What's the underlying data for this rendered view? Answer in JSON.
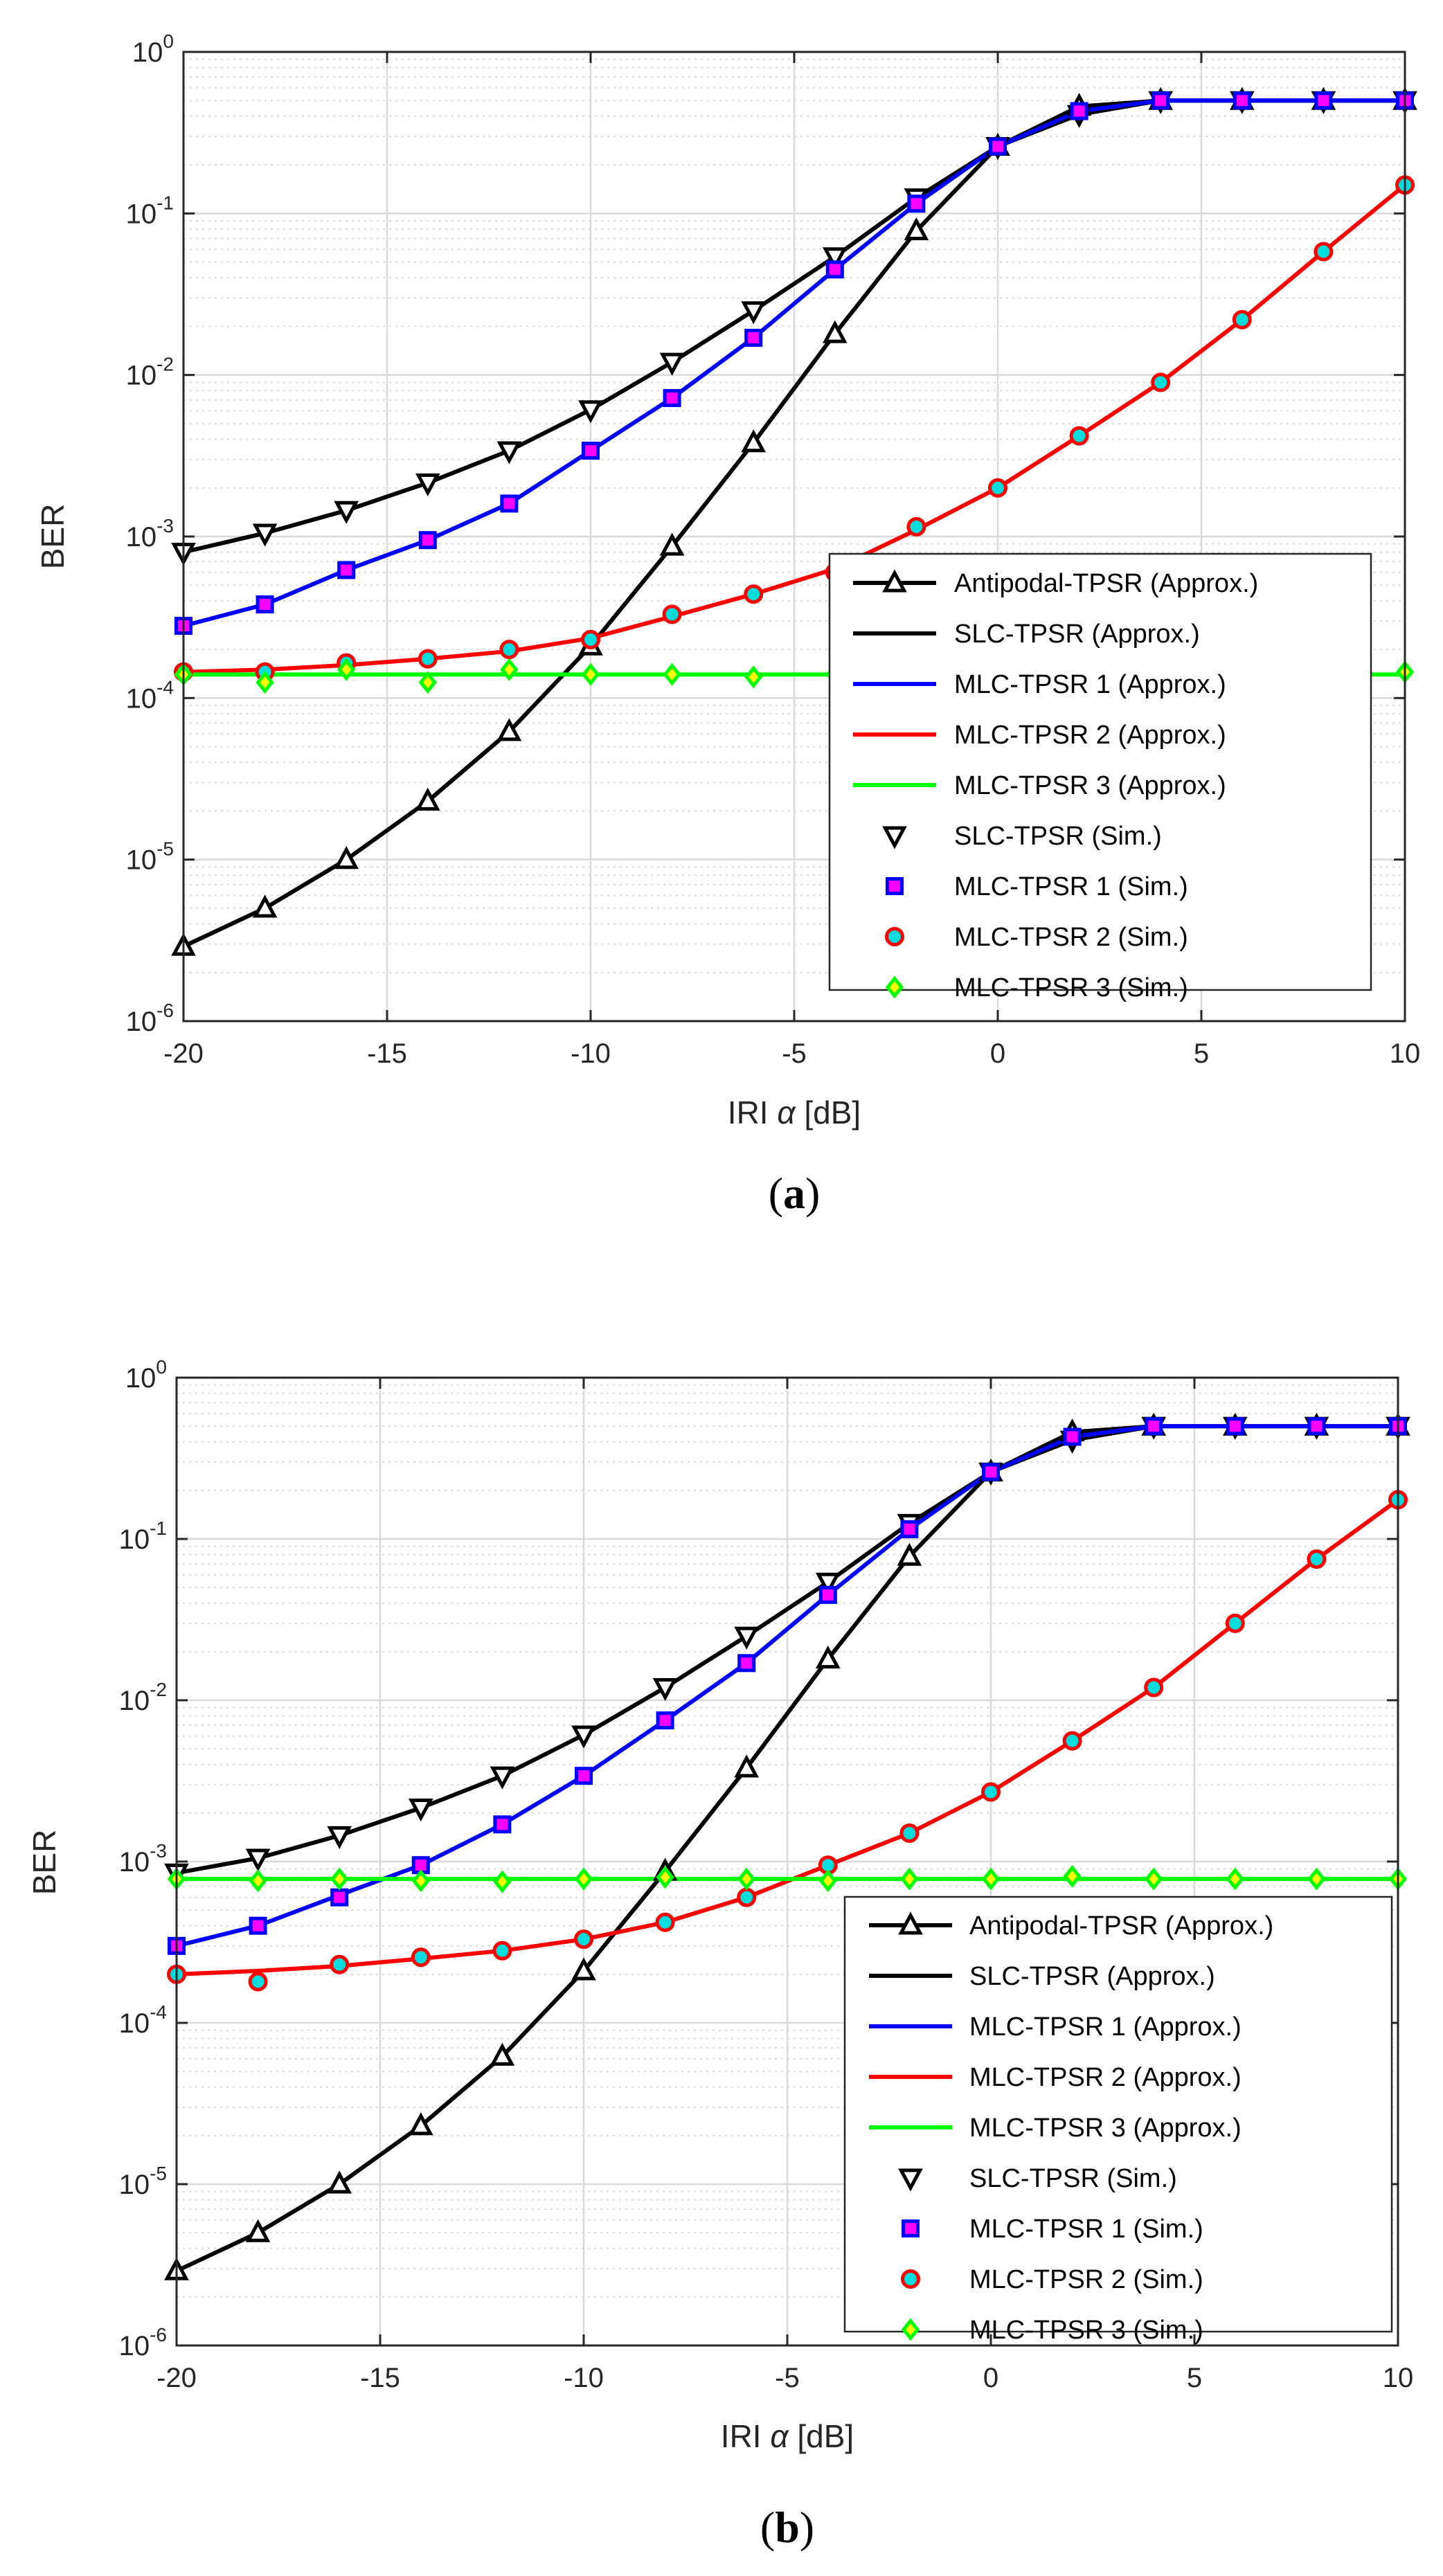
{
  "figure": {
    "colors": {
      "black": "#000000",
      "mlc1_line": "#0000ff",
      "mlc2_line": "#ff0000",
      "mlc3_line": "#00ff00",
      "square_fill": "#ff00ff",
      "square_edge": "#0000ff",
      "circle_fill": "#00dddd",
      "circle_edge": "#ff0000",
      "diamond_fill": "#ffff00",
      "diamond_edge": "#00ff00",
      "grid": "#d9d9d9"
    }
  },
  "chart_data": [
    {
      "id": "a",
      "type": "line",
      "caption_paren_open": "(",
      "caption_letter": "a",
      "caption_paren_close": ")",
      "xlabel_pre": "IRI ",
      "xlabel_symbol": "α",
      "xlabel_post": " [dB]",
      "ylabel": "BER",
      "xlim": [
        -20,
        10
      ],
      "ylim_exp": [
        -6,
        0
      ],
      "y_scale": "log",
      "grid": true,
      "legend_position": "lower-right",
      "x_ticks": [
        -20,
        -15,
        -10,
        -5,
        0,
        5,
        10
      ],
      "x_tick_labels": [
        "-20",
        "-15",
        "-10",
        "-5",
        "0",
        "5",
        "10"
      ],
      "y_tick_exps": [
        0,
        -1,
        -2,
        -3,
        -4,
        -5,
        -6
      ],
      "y_tick_base": "10",
      "y_tick_exp_labels": [
        "0",
        "-1",
        "-2",
        "-3",
        "-4",
        "-5",
        "-6"
      ],
      "x": [
        -20,
        -18,
        -16,
        -14,
        -12,
        -10,
        -8,
        -6,
        -4,
        -2,
        0,
        2,
        4,
        6,
        8,
        10
      ],
      "series": [
        {
          "name": "Antipodal-TPSR (Approx.)",
          "style": "antipodal",
          "values": [
            2.9e-06,
            5e-06,
            1e-05,
            2.3e-05,
            6.2e-05,
            0.00021,
            0.00087,
            0.0038,
            0.018,
            0.078,
            0.26,
            0.46,
            0.5,
            0.5,
            0.5,
            0.5
          ]
        },
        {
          "name": "SLC-TPSR (Approx.)",
          "style": "slc_line",
          "values": [
            0.0008,
            0.00105,
            0.00145,
            0.00215,
            0.0034,
            0.0061,
            0.012,
            0.025,
            0.054,
            0.125,
            0.26,
            0.41,
            0.5,
            0.5,
            0.5,
            0.5
          ]
        },
        {
          "name": "MLC-TPSR 1 (Approx.)",
          "style": "mlc1_line",
          "values": [
            0.00028,
            0.00038,
            0.00062,
            0.00095,
            0.0016,
            0.0034,
            0.0072,
            0.017,
            0.045,
            0.115,
            0.26,
            0.43,
            0.5,
            0.5,
            0.5,
            0.5
          ]
        },
        {
          "name": "MLC-TPSR 2 (Approx.)",
          "style": "mlc2_line",
          "values": [
            0.000145,
            0.00015,
            0.00016,
            0.000175,
            0.000195,
            0.000235,
            0.00032,
            0.00044,
            0.00063,
            0.0011,
            0.002,
            0.0042,
            0.009,
            0.022,
            0.058,
            0.15
          ]
        },
        {
          "name": "MLC-TPSR 3 (Approx.)",
          "style": "mlc3_line",
          "values": [
            0.00014,
            0.00014,
            0.00014,
            0.00014,
            0.00014,
            0.00014,
            0.00014,
            0.00014,
            0.00014,
            0.00014,
            0.00014,
            0.00014,
            0.00014,
            0.00014,
            0.00014,
            0.00014
          ]
        },
        {
          "name": "SLC-TPSR (Sim.)",
          "style": "slc_sim",
          "values": [
            0.0008,
            0.00105,
            0.00145,
            0.00215,
            0.0034,
            0.0061,
            0.012,
            0.025,
            0.054,
            0.125,
            0.26,
            0.41,
            0.5,
            0.5,
            0.5,
            0.5
          ]
        },
        {
          "name": "MLC-TPSR 1 (Sim.)",
          "style": "mlc1_sim",
          "values": [
            0.00028,
            0.00038,
            0.00062,
            0.00095,
            0.0016,
            0.0034,
            0.0072,
            0.017,
            0.045,
            0.115,
            0.26,
            0.43,
            0.5,
            0.5,
            0.5,
            0.5
          ]
        },
        {
          "name": "MLC-TPSR 2 (Sim.)",
          "style": "mlc2_sim",
          "values": [
            0.000145,
            0.000145,
            0.000165,
            0.000175,
            0.0002,
            0.00023,
            0.00033,
            0.00044,
            0.0006,
            0.00115,
            0.002,
            0.0042,
            0.009,
            0.022,
            0.058,
            0.15
          ]
        },
        {
          "name": "MLC-TPSR 3 (Sim.)",
          "style": "mlc3_sim",
          "values": [
            0.00014,
            0.000125,
            0.00015,
            0.000125,
            0.00015,
            0.00014,
            0.00014,
            0.000135,
            0.00014,
            0.00014,
            0.00014,
            0.000145,
            0.00014,
            0.000145,
            0.000145,
            0.000145
          ]
        }
      ]
    },
    {
      "id": "b",
      "type": "line",
      "caption_paren_open": "(",
      "caption_letter": "b",
      "caption_paren_close": ")",
      "xlabel_pre": "IRI ",
      "xlabel_symbol": "α",
      "xlabel_post": " [dB]",
      "ylabel": "BER",
      "xlim": [
        -20,
        10
      ],
      "ylim_exp": [
        -6,
        0
      ],
      "y_scale": "log",
      "grid": true,
      "legend_position": "lower-right",
      "x_ticks": [
        -20,
        -15,
        -10,
        -5,
        0,
        5,
        10
      ],
      "x_tick_labels": [
        "-20",
        "-15",
        "-10",
        "-5",
        "0",
        "5",
        "10"
      ],
      "y_tick_exps": [
        0,
        -1,
        -2,
        -3,
        -4,
        -5,
        -6
      ],
      "y_tick_base": "10",
      "y_tick_exp_labels": [
        "0",
        "-1",
        "-2",
        "-3",
        "-4",
        "-5",
        "-6"
      ],
      "x": [
        -20,
        -18,
        -16,
        -14,
        -12,
        -10,
        -8,
        -6,
        -4,
        -2,
        0,
        2,
        4,
        6,
        8,
        10
      ],
      "series": [
        {
          "name": "Antipodal-TPSR (Approx.)",
          "style": "antipodal",
          "values": [
            2.9e-06,
            5e-06,
            1e-05,
            2.3e-05,
            6.2e-05,
            0.00021,
            0.00087,
            0.0038,
            0.018,
            0.078,
            0.26,
            0.46,
            0.5,
            0.5,
            0.5,
            0.5
          ]
        },
        {
          "name": "SLC-TPSR (Approx.)",
          "style": "slc_line",
          "values": [
            0.00085,
            0.00105,
            0.00145,
            0.00215,
            0.0034,
            0.0061,
            0.012,
            0.025,
            0.054,
            0.125,
            0.26,
            0.41,
            0.5,
            0.5,
            0.5,
            0.5
          ]
        },
        {
          "name": "MLC-TPSR 1 (Approx.)",
          "style": "mlc1_line",
          "values": [
            0.0003,
            0.0004,
            0.00062,
            0.00095,
            0.0017,
            0.0034,
            0.0075,
            0.017,
            0.045,
            0.115,
            0.26,
            0.43,
            0.5,
            0.5,
            0.5,
            0.5
          ]
        },
        {
          "name": "MLC-TPSR 2 (Approx.)",
          "style": "mlc2_line",
          "values": [
            0.0002,
            0.00021,
            0.000225,
            0.00025,
            0.00028,
            0.00033,
            0.00042,
            0.0006,
            0.00095,
            0.0015,
            0.0027,
            0.0056,
            0.012,
            0.03,
            0.075,
            0.175
          ]
        },
        {
          "name": "MLC-TPSR 3 (Approx.)",
          "style": "mlc3_line",
          "values": [
            0.00078,
            0.00078,
            0.00078,
            0.00078,
            0.00078,
            0.00078,
            0.00078,
            0.00078,
            0.00078,
            0.00078,
            0.00078,
            0.00078,
            0.00078,
            0.00078,
            0.00078,
            0.00078
          ]
        },
        {
          "name": "SLC-TPSR (Sim.)",
          "style": "slc_sim",
          "values": [
            0.00085,
            0.00105,
            0.00145,
            0.00215,
            0.0034,
            0.0061,
            0.012,
            0.025,
            0.054,
            0.125,
            0.26,
            0.41,
            0.5,
            0.5,
            0.5,
            0.5
          ]
        },
        {
          "name": "MLC-TPSR 1 (Sim.)",
          "style": "mlc1_sim",
          "values": [
            0.0003,
            0.0004,
            0.0006,
            0.00095,
            0.0017,
            0.0034,
            0.0075,
            0.017,
            0.045,
            0.115,
            0.26,
            0.43,
            0.5,
            0.5,
            0.5,
            0.5
          ]
        },
        {
          "name": "MLC-TPSR 2 (Sim.)",
          "style": "mlc2_sim",
          "values": [
            0.0002,
            0.00018,
            0.00023,
            0.000255,
            0.00028,
            0.00033,
            0.00042,
            0.0006,
            0.00095,
            0.0015,
            0.0027,
            0.0056,
            0.012,
            0.03,
            0.075,
            0.175
          ]
        },
        {
          "name": "MLC-TPSR 3 (Sim.)",
          "style": "mlc3_sim",
          "values": [
            0.00078,
            0.00076,
            0.00078,
            0.00076,
            0.00075,
            0.00078,
            0.0008,
            0.00078,
            0.00076,
            0.00078,
            0.00078,
            0.00081,
            0.00078,
            0.00078,
            0.00078,
            0.00078
          ]
        }
      ]
    }
  ]
}
